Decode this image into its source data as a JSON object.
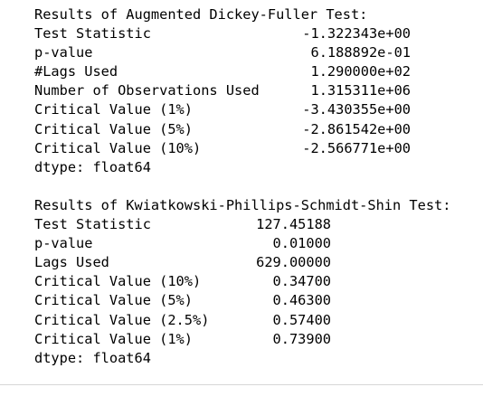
{
  "adf": {
    "title": "Results of Augmented Dickey-Fuller Test:",
    "rows": [
      {
        "label": "Test Statistic",
        "value": "-1.322343e+00"
      },
      {
        "label": "p-value",
        "value": "6.188892e-01"
      },
      {
        "label": "#Lags Used",
        "value": "1.290000e+02"
      },
      {
        "label": "Number of Observations Used",
        "value": "1.315311e+06"
      },
      {
        "label": "Critical Value (1%)",
        "value": "-3.430355e+00"
      },
      {
        "label": "Critical Value (5%)",
        "value": "-2.861542e+00"
      },
      {
        "label": "Critical Value (10%)",
        "value": "-2.566771e+00"
      }
    ],
    "dtype": "dtype: float64"
  },
  "kpss": {
    "title": "Results of Kwiatkowski-Phillips-Schmidt-Shin Test:",
    "rows": [
      {
        "label": "Test Statistic",
        "value": "127.45188"
      },
      {
        "label": "p-value",
        "value": "0.01000"
      },
      {
        "label": "Lags Used",
        "value": "629.00000"
      },
      {
        "label": "Critical Value (10%)",
        "value": "0.34700"
      },
      {
        "label": "Critical Value (5%)",
        "value": "0.46300"
      },
      {
        "label": "Critical Value (2.5%)",
        "value": "0.57400"
      },
      {
        "label": "Critical Value (1%)",
        "value": "0.73900"
      }
    ],
    "dtype": "dtype: float64"
  }
}
